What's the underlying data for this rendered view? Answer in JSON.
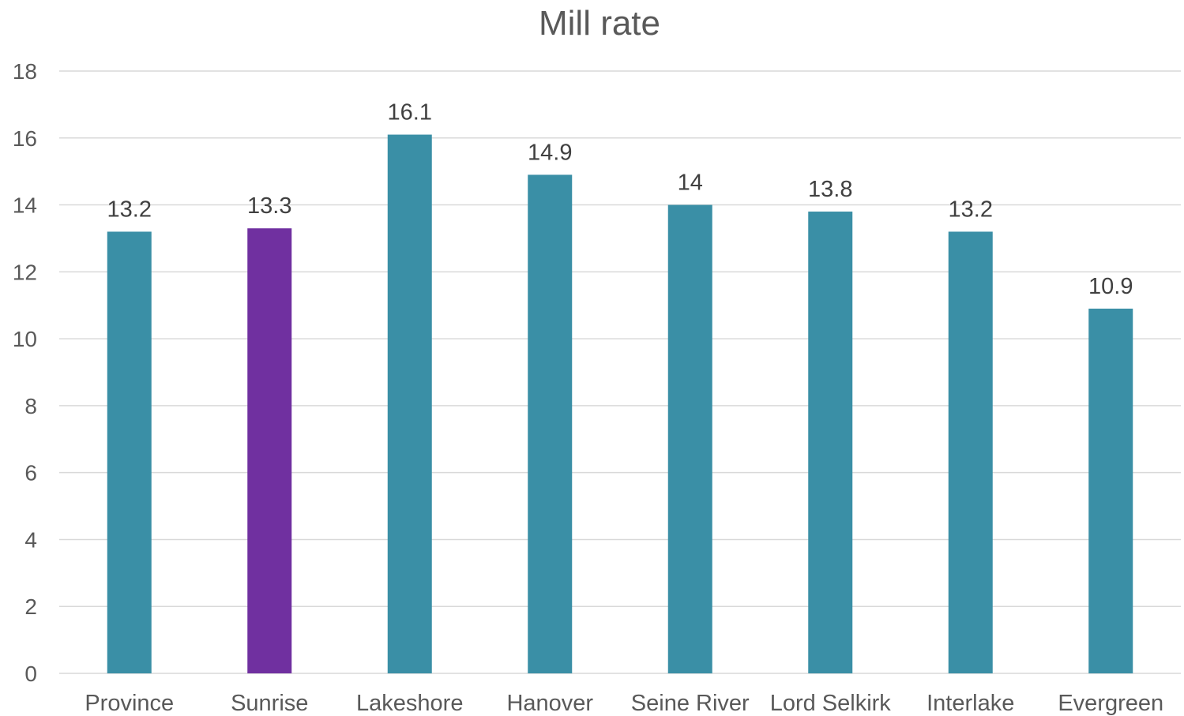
{
  "chart_data": {
    "type": "bar",
    "title": "Mill rate",
    "xlabel": "",
    "ylabel": "",
    "categories": [
      "Province",
      "Sunrise",
      "Lakeshore",
      "Hanover",
      "Seine River",
      "Lord Selkirk",
      "Interlake",
      "Evergreen"
    ],
    "values": [
      13.2,
      13.3,
      16.1,
      14.9,
      14,
      13.8,
      13.2,
      10.9
    ],
    "value_labels": [
      "13.2",
      "13.3",
      "16.1",
      "14.9",
      "14",
      "13.8",
      "13.2",
      "10.9"
    ],
    "ylim": [
      0,
      18
    ],
    "yticks": [
      0,
      2,
      4,
      6,
      8,
      10,
      12,
      14,
      16,
      18
    ],
    "grid": true,
    "legend": "none",
    "colors": {
      "default_bar": "#3a8fa6",
      "highlight_bar": "#7030a0",
      "gridline": "#d9d9d9",
      "text": "#595959"
    },
    "highlight_category": "Sunrise"
  }
}
